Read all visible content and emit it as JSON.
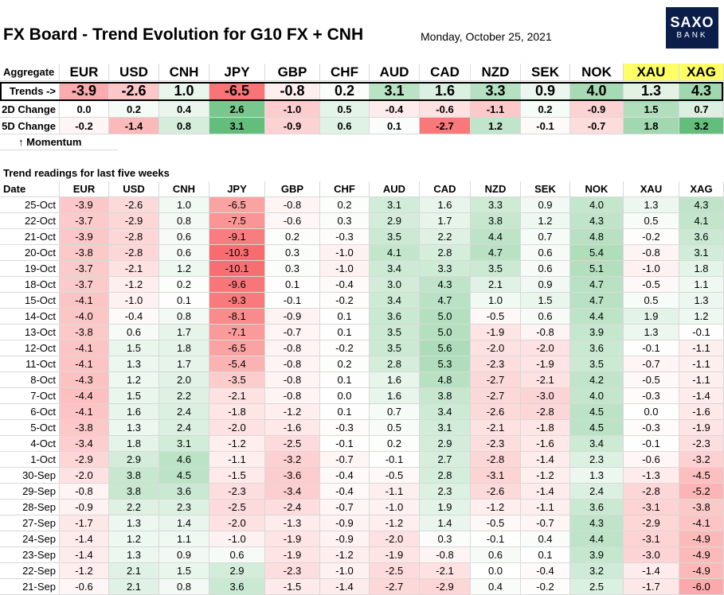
{
  "header": {
    "title": "FX Board - Trend Evolution for G10 FX + CNH",
    "date": "Monday, October 25, 2021",
    "logo_line1": "SAXO",
    "logo_line2": "BANK"
  },
  "colors": {
    "positive": "#63be7b",
    "negative": "#f8696b",
    "neutral": "#ffffff",
    "highlight": "#ffff66"
  },
  "currencies": [
    "EUR",
    "USD",
    "CNH",
    "JPY",
    "GBP",
    "CHF",
    "AUD",
    "CAD",
    "NZD",
    "SEK",
    "NOK",
    "XAU",
    "XAG"
  ],
  "aggregate": {
    "label": "Aggregate",
    "trends_label": "Trends ->",
    "trends": [
      "-3.9",
      "-2.6",
      "1.0",
      "-6.5",
      "-0.8",
      "0.2",
      "3.1",
      "1.6",
      "3.3",
      "0.9",
      "4.0",
      "1.3",
      "4.3"
    ],
    "change2d_label": "2D Change",
    "change2d": [
      "0.0",
      "0.2",
      "0.4",
      "2.6",
      "-1.0",
      "0.5",
      "-0.4",
      "-0.6",
      "-1.1",
      "0.2",
      "-0.9",
      "1.5",
      "0.7"
    ],
    "change5d_label": "5D Change",
    "change5d": [
      "-0.2",
      "-1.4",
      "0.8",
      "3.1",
      "-0.9",
      "0.6",
      "0.1",
      "-2.7",
      "1.2",
      "-0.1",
      "-0.7",
      "1.8",
      "3.2"
    ],
    "momentum_label": "↑ Momentum"
  },
  "history": {
    "section_label": "Trend readings for last five weeks",
    "date_label": "Date",
    "rows": [
      {
        "date": "25-Oct",
        "values": [
          "-3.9",
          "-2.6",
          "1.0",
          "-6.5",
          "-0.8",
          "0.2",
          "3.1",
          "1.6",
          "3.3",
          "0.9",
          "4.0",
          "1.3",
          "4.3"
        ]
      },
      {
        "date": "22-Oct",
        "values": [
          "-3.7",
          "-2.9",
          "0.8",
          "-7.5",
          "-0.6",
          "0.3",
          "2.9",
          "1.7",
          "3.8",
          "1.2",
          "4.3",
          "0.5",
          "4.1"
        ]
      },
      {
        "date": "21-Oct",
        "values": [
          "-3.9",
          "-2.8",
          "0.6",
          "-9.1",
          "0.2",
          "-0.3",
          "3.5",
          "2.2",
          "4.4",
          "0.7",
          "4.8",
          "-0.2",
          "3.6"
        ]
      },
      {
        "date": "20-Oct",
        "values": [
          "-3.8",
          "-2.8",
          "0.6",
          "-10.3",
          "0.3",
          "-1.0",
          "4.1",
          "2.8",
          "4.7",
          "0.6",
          "5.4",
          "-0.8",
          "3.1"
        ]
      },
      {
        "date": "19-Oct",
        "values": [
          "-3.7",
          "-2.1",
          "1.2",
          "-10.1",
          "0.3",
          "-1.0",
          "3.4",
          "3.3",
          "3.5",
          "0.6",
          "5.1",
          "-1.0",
          "1.8"
        ]
      },
      {
        "date": "18-Oct",
        "values": [
          "-3.7",
          "-1.2",
          "0.2",
          "-9.6",
          "0.1",
          "-0.4",
          "3.0",
          "4.3",
          "2.1",
          "0.9",
          "4.7",
          "-0.5",
          "1.1"
        ]
      },
      {
        "date": "15-Oct",
        "values": [
          "-4.1",
          "-1.0",
          "0.1",
          "-9.3",
          "-0.1",
          "-0.2",
          "3.4",
          "4.7",
          "1.0",
          "1.5",
          "4.7",
          "0.5",
          "1.3"
        ]
      },
      {
        "date": "14-Oct",
        "values": [
          "-4.0",
          "-0.4",
          "0.8",
          "-8.1",
          "-0.9",
          "0.1",
          "3.6",
          "5.0",
          "-0.5",
          "0.6",
          "4.4",
          "1.9",
          "1.2"
        ]
      },
      {
        "date": "13-Oct",
        "values": [
          "-3.8",
          "0.6",
          "1.7",
          "-7.1",
          "-0.7",
          "0.1",
          "3.5",
          "5.0",
          "-1.9",
          "-0.8",
          "3.9",
          "1.3",
          "-0.1"
        ]
      },
      {
        "date": "12-Oct",
        "values": [
          "-4.1",
          "1.5",
          "1.8",
          "-6.5",
          "-0.8",
          "-0.2",
          "3.5",
          "5.6",
          "-2.0",
          "-2.0",
          "3.6",
          "-0.1",
          "-1.1"
        ]
      },
      {
        "date": "11-Oct",
        "values": [
          "-4.1",
          "1.3",
          "1.7",
          "-5.4",
          "-0.8",
          "0.2",
          "2.8",
          "5.3",
          "-2.3",
          "-1.9",
          "3.5",
          "-0.7",
          "-1.1"
        ]
      },
      {
        "date": "8-Oct",
        "values": [
          "-4.3",
          "1.2",
          "2.0",
          "-3.5",
          "-0.8",
          "0.1",
          "1.6",
          "4.8",
          "-2.7",
          "-2.1",
          "4.2",
          "-0.5",
          "-1.1"
        ]
      },
      {
        "date": "7-Oct",
        "values": [
          "-4.4",
          "1.5",
          "2.2",
          "-2.1",
          "-0.8",
          "0.0",
          "1.6",
          "3.8",
          "-2.7",
          "-3.0",
          "4.0",
          "-0.3",
          "-1.4"
        ]
      },
      {
        "date": "6-Oct",
        "values": [
          "-4.1",
          "1.6",
          "2.4",
          "-1.8",
          "-1.2",
          "0.1",
          "0.7",
          "3.4",
          "-2.6",
          "-2.8",
          "4.5",
          "0.0",
          "-1.6"
        ]
      },
      {
        "date": "5-Oct",
        "values": [
          "-3.8",
          "1.3",
          "2.4",
          "-2.0",
          "-1.6",
          "-0.3",
          "0.5",
          "3.1",
          "-2.1",
          "-1.8",
          "4.5",
          "-0.3",
          "-1.9"
        ]
      },
      {
        "date": "4-Oct",
        "values": [
          "-3.4",
          "1.8",
          "3.1",
          "-1.2",
          "-2.5",
          "-0.1",
          "0.2",
          "2.9",
          "-2.3",
          "-1.6",
          "3.4",
          "-0.1",
          "-2.3"
        ]
      },
      {
        "date": "1-Oct",
        "values": [
          "-2.9",
          "2.9",
          "4.6",
          "-1.1",
          "-3.2",
          "-0.7",
          "-0.1",
          "2.7",
          "-2.8",
          "-1.4",
          "2.3",
          "-0.6",
          "-3.2"
        ]
      },
      {
        "date": "30-Sep",
        "values": [
          "-2.0",
          "3.8",
          "4.5",
          "-1.5",
          "-3.6",
          "-0.4",
          "-0.5",
          "2.8",
          "-3.1",
          "-1.2",
          "1.3",
          "-1.3",
          "-4.5"
        ]
      },
      {
        "date": "29-Sep",
        "values": [
          "-0.8",
          "3.8",
          "3.6",
          "-2.3",
          "-3.4",
          "-0.4",
          "-1.1",
          "2.3",
          "-2.6",
          "-1.4",
          "2.4",
          "-2.8",
          "-5.2"
        ]
      },
      {
        "date": "28-Sep",
        "values": [
          "-0.9",
          "2.2",
          "2.3",
          "-2.5",
          "-2.4",
          "-0.7",
          "-1.0",
          "1.9",
          "-1.2",
          "-1.1",
          "3.6",
          "-3.1",
          "-3.8"
        ]
      },
      {
        "date": "27-Sep",
        "values": [
          "-1.7",
          "1.3",
          "1.4",
          "-2.0",
          "-1.3",
          "-0.9",
          "-1.2",
          "1.4",
          "-0.5",
          "-0.7",
          "4.3",
          "-2.9",
          "-4.1"
        ]
      },
      {
        "date": "24-Sep",
        "values": [
          "-1.4",
          "1.2",
          "1.1",
          "-1.0",
          "-1.9",
          "-0.9",
          "-2.0",
          "0.3",
          "-0.1",
          "0.4",
          "4.4",
          "-3.1",
          "-4.9"
        ]
      },
      {
        "date": "23-Sep",
        "values": [
          "-1.4",
          "1.3",
          "0.9",
          "0.6",
          "-1.9",
          "-1.2",
          "-1.9",
          "-0.8",
          "0.6",
          "0.1",
          "3.9",
          "-3.0",
          "-4.9"
        ]
      },
      {
        "date": "22-Sep",
        "values": [
          "-1.2",
          "2.1",
          "1.5",
          "2.9",
          "-2.3",
          "-1.0",
          "-2.5",
          "-2.1",
          "0.0",
          "-0.4",
          "3.2",
          "-1.4",
          "-4.9"
        ]
      },
      {
        "date": "21-Sep",
        "values": [
          "-0.6",
          "2.1",
          "0.8",
          "3.6",
          "-1.5",
          "-1.4",
          "-2.7",
          "-2.9",
          "0.4",
          "-0.2",
          "2.5",
          "-1.7",
          "-6.0"
        ]
      }
    ]
  }
}
